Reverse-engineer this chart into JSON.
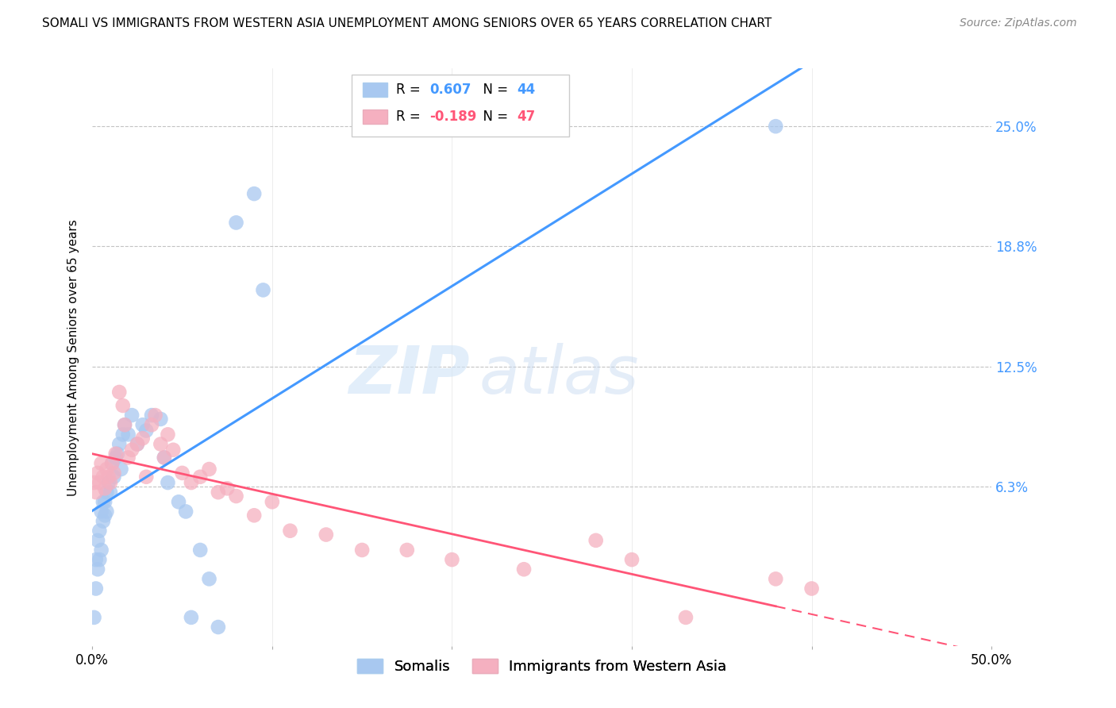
{
  "title": "SOMALI VS IMMIGRANTS FROM WESTERN ASIA UNEMPLOYMENT AMONG SENIORS OVER 65 YEARS CORRELATION CHART",
  "source": "Source: ZipAtlas.com",
  "ylabel": "Unemployment Among Seniors over 65 years",
  "xlim": [
    0.0,
    0.5
  ],
  "ylim": [
    -0.02,
    0.28
  ],
  "ytick_labels_right": [
    "6.3%",
    "12.5%",
    "18.8%",
    "25.0%"
  ],
  "ytick_vals_right": [
    0.063,
    0.125,
    0.188,
    0.25
  ],
  "legend_label1": "Somalis",
  "legend_label2": "Immigrants from Western Asia",
  "blue_color": "#a8c8f0",
  "pink_color": "#f5b0c0",
  "blue_line_color": "#4499ff",
  "pink_line_color": "#ff5577",
  "watermark_zip": "ZIP",
  "watermark_atlas": "atlas",
  "somali_x": [
    0.001,
    0.002,
    0.002,
    0.003,
    0.003,
    0.004,
    0.004,
    0.005,
    0.005,
    0.006,
    0.006,
    0.007,
    0.007,
    0.008,
    0.008,
    0.009,
    0.01,
    0.011,
    0.012,
    0.013,
    0.014,
    0.015,
    0.016,
    0.017,
    0.018,
    0.02,
    0.022,
    0.025,
    0.028,
    0.03,
    0.033,
    0.038,
    0.04,
    0.042,
    0.048,
    0.052,
    0.055,
    0.06,
    0.065,
    0.07,
    0.08,
    0.09,
    0.095,
    0.38
  ],
  "somali_y": [
    -0.005,
    0.01,
    0.025,
    0.02,
    0.035,
    0.025,
    0.04,
    0.03,
    0.05,
    0.045,
    0.055,
    0.048,
    0.055,
    0.06,
    0.05,
    0.065,
    0.06,
    0.075,
    0.068,
    0.078,
    0.08,
    0.085,
    0.072,
    0.09,
    0.095,
    0.09,
    0.1,
    0.085,
    0.095,
    0.092,
    0.1,
    0.098,
    0.078,
    0.065,
    0.055,
    0.05,
    -0.005,
    0.03,
    0.015,
    -0.01,
    0.2,
    0.215,
    0.165,
    0.25
  ],
  "western_x": [
    0.001,
    0.002,
    0.003,
    0.004,
    0.005,
    0.006,
    0.007,
    0.008,
    0.009,
    0.01,
    0.011,
    0.012,
    0.013,
    0.015,
    0.017,
    0.018,
    0.02,
    0.022,
    0.025,
    0.028,
    0.03,
    0.033,
    0.035,
    0.038,
    0.04,
    0.042,
    0.045,
    0.05,
    0.055,
    0.06,
    0.065,
    0.07,
    0.075,
    0.08,
    0.09,
    0.1,
    0.11,
    0.13,
    0.15,
    0.175,
    0.2,
    0.24,
    0.28,
    0.3,
    0.33,
    0.38,
    0.4
  ],
  "western_y": [
    0.065,
    0.06,
    0.07,
    0.065,
    0.075,
    0.068,
    0.062,
    0.072,
    0.068,
    0.065,
    0.075,
    0.07,
    0.08,
    0.112,
    0.105,
    0.095,
    0.078,
    0.082,
    0.085,
    0.088,
    0.068,
    0.095,
    0.1,
    0.085,
    0.078,
    0.09,
    0.082,
    0.07,
    0.065,
    0.068,
    0.072,
    0.06,
    0.062,
    0.058,
    0.048,
    0.055,
    0.04,
    0.038,
    0.03,
    0.03,
    0.025,
    0.02,
    0.035,
    0.025,
    -0.005,
    0.015,
    0.01
  ]
}
